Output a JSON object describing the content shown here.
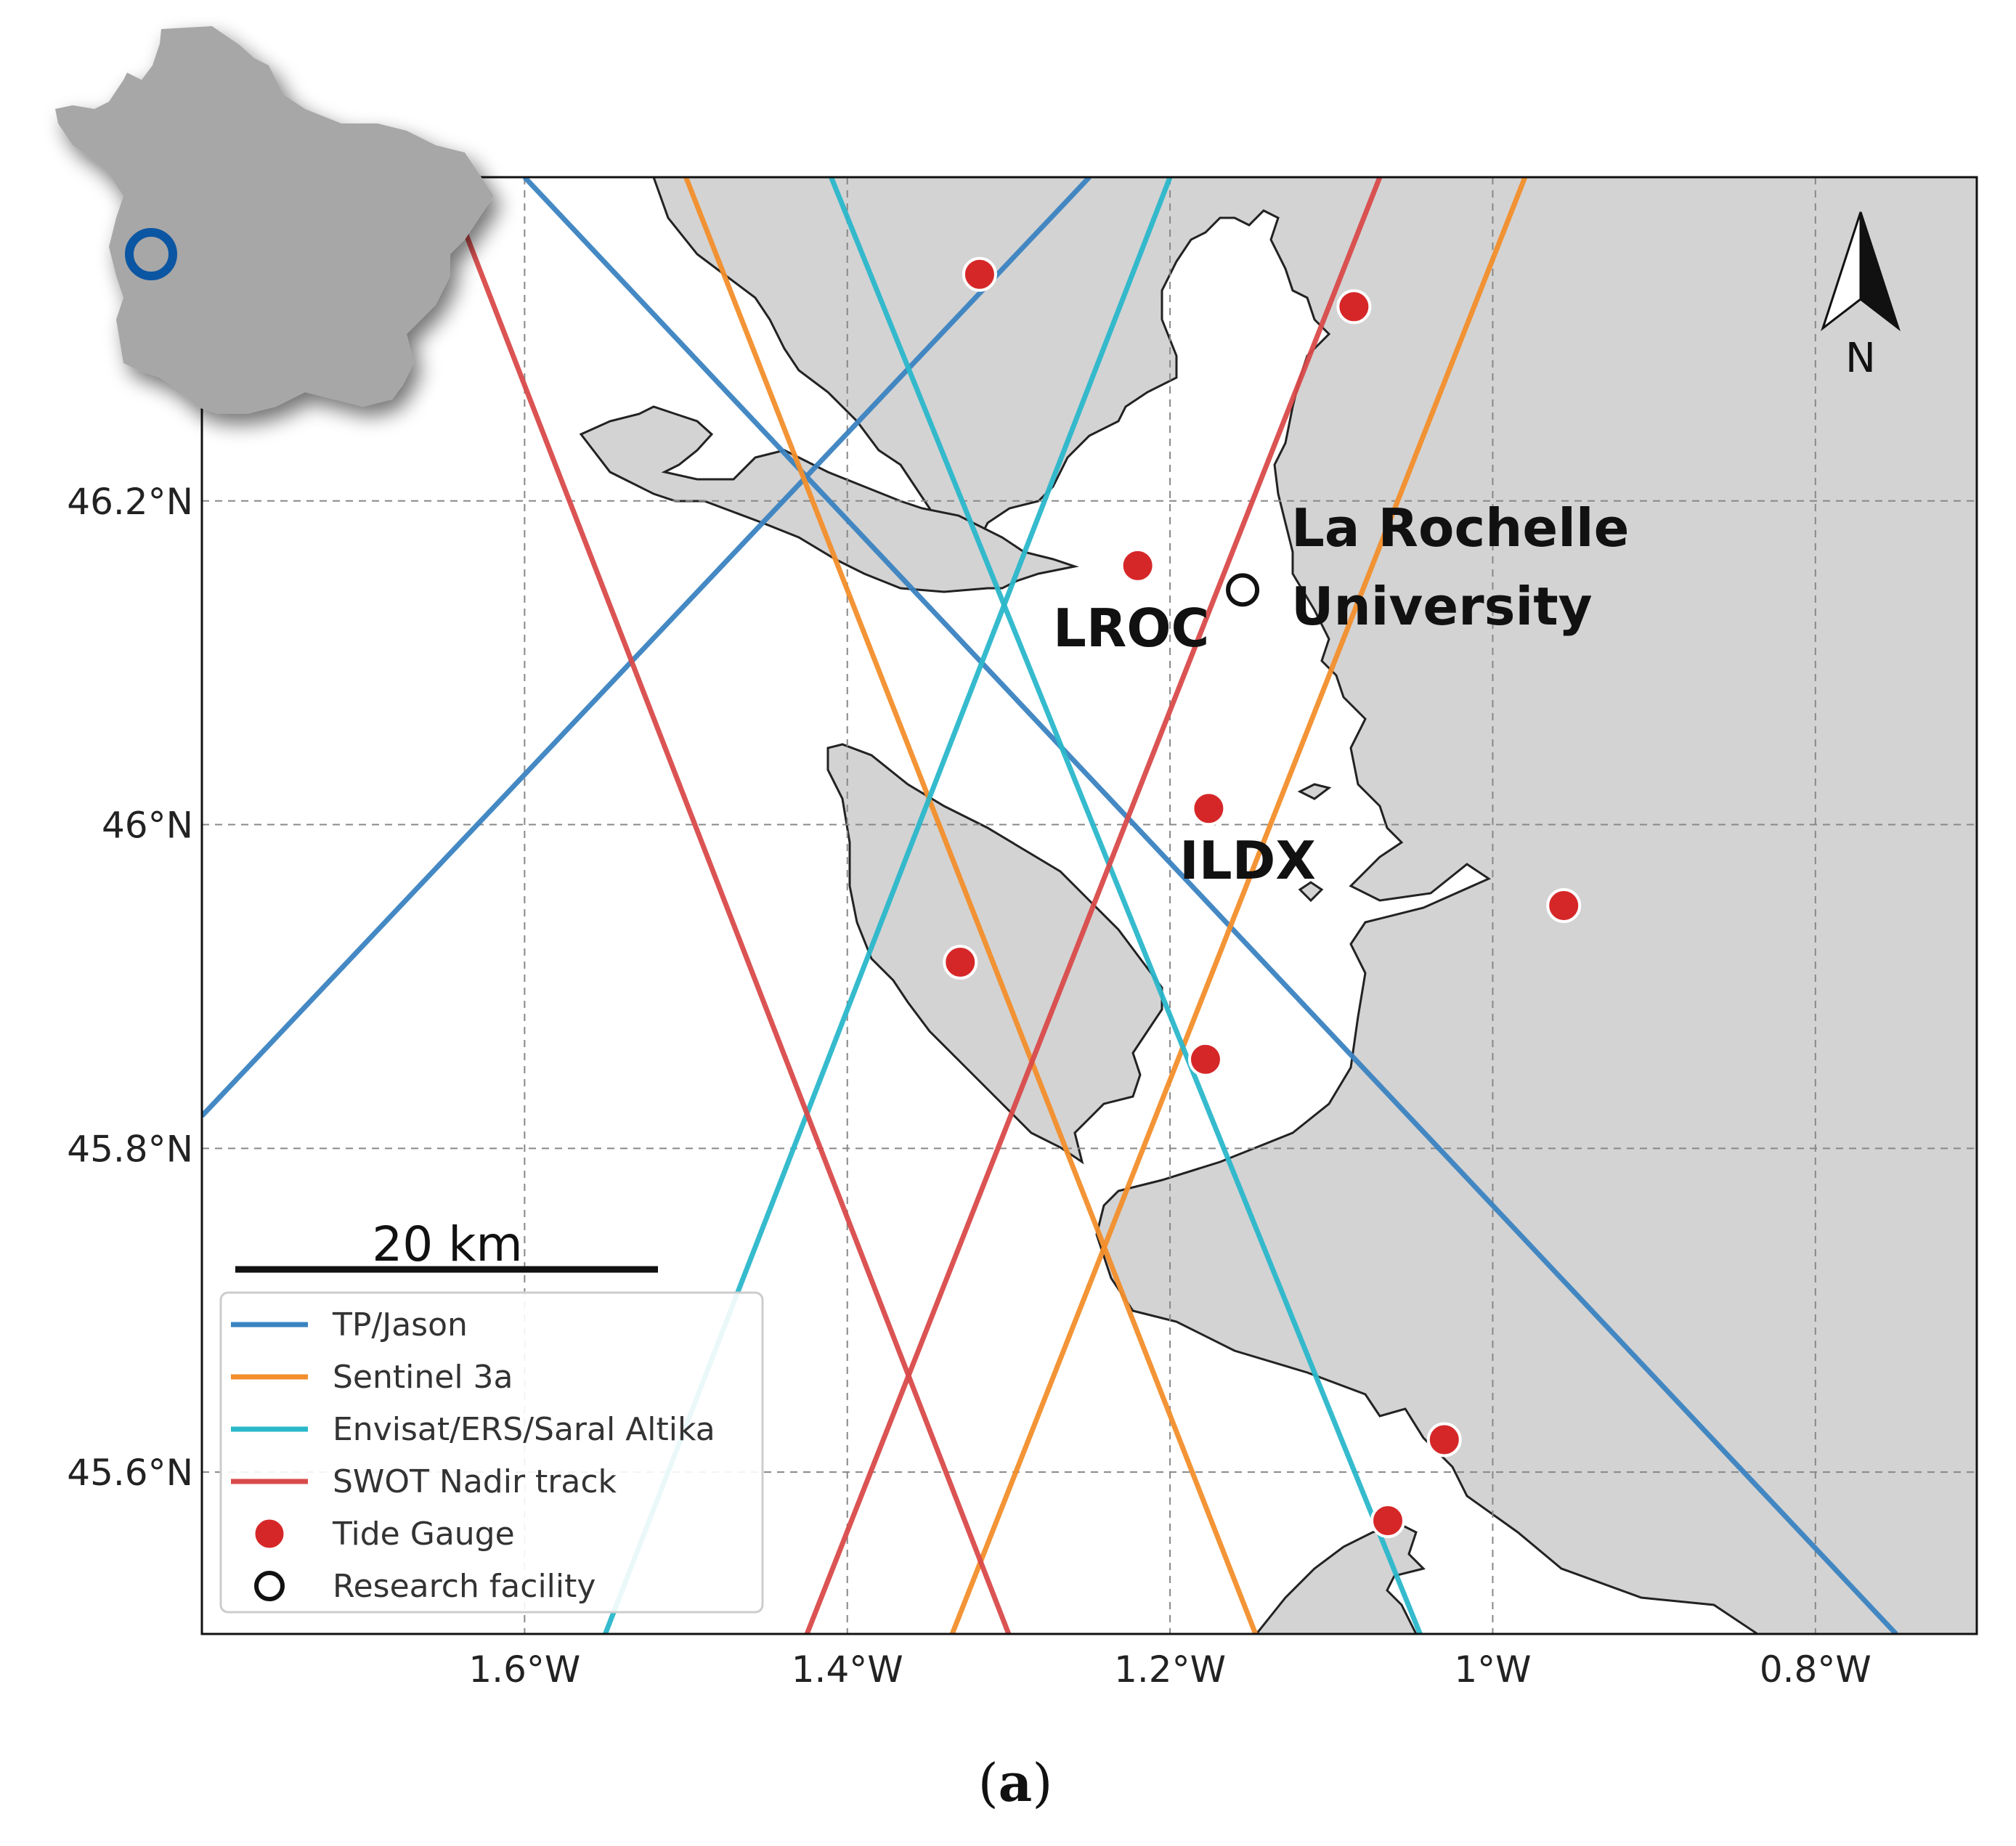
{
  "map": {
    "lon_range": [
      -1.8,
      -0.7
    ],
    "lat_range": [
      45.5,
      46.4
    ],
    "land_color": "#d3d3d3",
    "sea_color": "#ffffff",
    "x_ticks": [
      {
        "value": -1.6,
        "label": "1.6°W"
      },
      {
        "value": -1.4,
        "label": "1.4°W"
      },
      {
        "value": -1.2,
        "label": "1.2°W"
      },
      {
        "value": -1.0,
        "label": "1°W"
      },
      {
        "value": -0.8,
        "label": "0.8°W"
      }
    ],
    "y_ticks": [
      {
        "value": 46.2,
        "label": "46.2°N"
      },
      {
        "value": 46.0,
        "label": "46°N"
      },
      {
        "value": 45.8,
        "label": "45.8°N"
      },
      {
        "value": 45.6,
        "label": "45.6°N"
      }
    ],
    "grid": true
  },
  "tracks": [
    {
      "name": "TP/Jason",
      "color": "#3a83c1",
      "lines": [
        [
          [
            -1.8,
            45.82
          ],
          [
            -1.25,
            46.4
          ]
        ],
        [
          [
            -1.6,
            46.4
          ],
          [
            -0.75,
            45.5
          ]
        ]
      ]
    },
    {
      "name": "Sentinel 3a",
      "color": "#f28e2b",
      "lines": [
        [
          [
            -1.5,
            46.4
          ],
          [
            -1.147,
            45.5
          ]
        ],
        [
          [
            -1.335,
            45.5
          ],
          [
            -0.98,
            46.4
          ]
        ]
      ]
    },
    {
      "name": "Envisat/ERS/Saral Altika",
      "color": "#2ab7ca",
      "lines": [
        [
          [
            -1.41,
            46.4
          ],
          [
            -1.045,
            45.5
          ]
        ],
        [
          [
            -1.55,
            45.5
          ],
          [
            -1.2,
            46.4
          ]
        ]
      ]
    },
    {
      "name": "SWOT Nadir track",
      "color": "#d94a4a",
      "lines": [
        [
          [
            -1.65,
            46.4
          ],
          [
            -1.3,
            45.5
          ]
        ],
        [
          [
            -1.425,
            45.5
          ],
          [
            -1.07,
            46.4
          ]
        ]
      ]
    }
  ],
  "tide_gauges": [
    {
      "lon": -1.318,
      "lat": 46.34
    },
    {
      "lon": -1.086,
      "lat": 46.32
    },
    {
      "lon": -1.22,
      "lat": 46.16
    },
    {
      "lon": -1.176,
      "lat": 46.01
    },
    {
      "lon": -0.956,
      "lat": 45.95
    },
    {
      "lon": -1.33,
      "lat": 45.915
    },
    {
      "lon": -1.178,
      "lat": 45.855
    },
    {
      "lon": -1.03,
      "lat": 45.62
    },
    {
      "lon": -1.065,
      "lat": 45.57
    }
  ],
  "research_facilities": [
    {
      "lon": -1.155,
      "lat": 46.145
    }
  ],
  "place_labels": {
    "la_rochelle_line1": "La Rochelle",
    "la_rochelle_line2": "University",
    "lroc": "LROC",
    "ildx": "ILDX"
  },
  "scale_bar": {
    "label": "20 km"
  },
  "north_arrow": {
    "label": "N"
  },
  "legend": {
    "placement": "lower-left",
    "items": [
      {
        "label": "TP/Jason",
        "kind": "line",
        "color": "#3a83c1"
      },
      {
        "label": "Sentinel 3a",
        "kind": "line",
        "color": "#f28e2b"
      },
      {
        "label": "Envisat/ERS/Saral Altika",
        "kind": "line",
        "color": "#2ab7ca"
      },
      {
        "label": "SWOT Nadir track",
        "kind": "line",
        "color": "#d94a4a"
      },
      {
        "label": "Tide Gauge",
        "kind": "dot",
        "color": "#d62728"
      },
      {
        "label": "Research facility",
        "kind": "circle",
        "color": "#111111"
      }
    ]
  },
  "inset": {
    "region": "France",
    "marker_color": "#0b56a3"
  },
  "caption": {
    "open": "(",
    "letter": "a",
    "close": ")"
  }
}
